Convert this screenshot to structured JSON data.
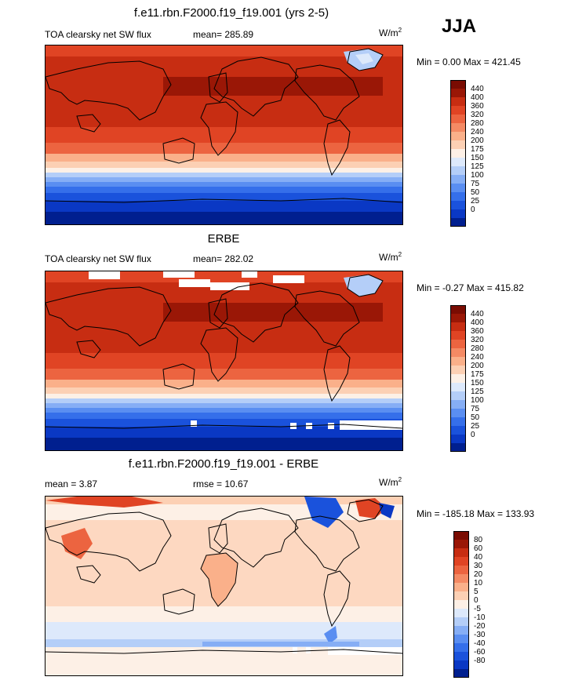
{
  "season": "JJA",
  "panels": [
    {
      "title": "f.e11.rbn.F2000.f19_f19.001 (yrs 2-5)",
      "left_label": "TOA clearsky net SW flux",
      "mid_label": "mean= 285.89",
      "units": "W/m",
      "units_sup": "2",
      "minmax": "Min =   0.00 Max = 421.45",
      "colorbar": {
        "colors": [
          "#001f8f",
          "#0a38c4",
          "#1a52dc",
          "#356fea",
          "#5a8ef1",
          "#86aef5",
          "#b4cef8",
          "#dde9fb",
          "#fdf0e6",
          "#fcd0b4",
          "#fab08a",
          "#f48a64",
          "#ec6440",
          "#e04424",
          "#c72d12",
          "#9a1706",
          "#7a0c02"
        ],
        "labels": [
          "0",
          "25",
          "50",
          "75",
          "100",
          "125",
          "150",
          "175",
          "200",
          "240",
          "280",
          "320",
          "360",
          "400",
          "440"
        ]
      }
    },
    {
      "title": "ERBE",
      "left_label": "TOA clearsky net SW flux",
      "mid_label": "mean= 282.02",
      "units": "W/m",
      "units_sup": "2",
      "minmax": "Min =  -0.27 Max = 415.82",
      "colorbar": {
        "colors": [
          "#001f8f",
          "#0a38c4",
          "#1a52dc",
          "#356fea",
          "#5a8ef1",
          "#86aef5",
          "#b4cef8",
          "#dde9fb",
          "#fdf0e6",
          "#fcd0b4",
          "#fab08a",
          "#f48a64",
          "#ec6440",
          "#e04424",
          "#c72d12",
          "#9a1706",
          "#7a0c02"
        ],
        "labels": [
          "0",
          "25",
          "50",
          "75",
          "100",
          "125",
          "150",
          "175",
          "200",
          "240",
          "280",
          "320",
          "360",
          "400",
          "440"
        ]
      }
    },
    {
      "title": "f.e11.rbn.F2000.f19_f19.001 - ERBE",
      "left_label": "mean =   3.87",
      "mid_label": "rmse =  10.67",
      "units": "W/m",
      "units_sup": "2",
      "minmax": "Min = -185.18 Max = 133.93",
      "colorbar": {
        "colors": [
          "#001f8f",
          "#0a38c4",
          "#1a52dc",
          "#356fea",
          "#5a8ef1",
          "#86aef5",
          "#b4cef8",
          "#dde9fb",
          "#fdf0e6",
          "#fcd0b4",
          "#fab08a",
          "#f48a64",
          "#ec6440",
          "#e04424",
          "#c72d12",
          "#9a1706",
          "#7a0c02"
        ],
        "labels": [
          "-80",
          "-60",
          "-40",
          "-30",
          "-20",
          "-10",
          "-5",
          "0",
          "5",
          "10",
          "20",
          "30",
          "40",
          "60",
          "80"
        ]
      }
    }
  ]
}
